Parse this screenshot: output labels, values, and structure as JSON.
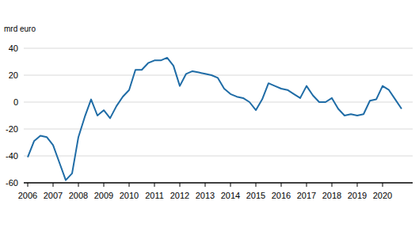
{
  "chart_data": {
    "type": "line",
    "y_label": "mrd euro",
    "x": [
      2006,
      2006.25,
      2006.5,
      2006.75,
      2007,
      2007.25,
      2007.5,
      2007.75,
      2008,
      2008.25,
      2008.5,
      2008.75,
      2009,
      2009.25,
      2009.5,
      2009.75,
      2010,
      2010.25,
      2010.5,
      2010.75,
      2011,
      2011.25,
      2011.5,
      2011.75,
      2012,
      2012.25,
      2012.5,
      2012.75,
      2013,
      2013.25,
      2013.5,
      2013.75,
      2014,
      2014.25,
      2014.5,
      2014.75,
      2015,
      2015.25,
      2015.5,
      2015.75,
      2016,
      2016.25,
      2016.5,
      2016.75,
      2017,
      2017.25,
      2017.5,
      2017.75,
      2018,
      2018.25,
      2018.5,
      2018.75,
      2019,
      2019.25,
      2019.5,
      2019.75,
      2020,
      2020.25,
      2020.5,
      2020.75
    ],
    "values": [
      -41,
      -29,
      -25,
      -26,
      -32,
      -45,
      -58,
      -53,
      -26,
      -11,
      2,
      -10,
      -6,
      -12,
      -3,
      4,
      9,
      24,
      24,
      29,
      31,
      31,
      33,
      27,
      12,
      21,
      23,
      22,
      21,
      20,
      18,
      10,
      6,
      4,
      3,
      0,
      -6,
      2,
      14,
      12,
      10,
      9,
      6,
      3,
      12,
      5,
      0,
      0,
      3,
      -5,
      -10,
      -9,
      -10,
      -9,
      1,
      2,
      12,
      9,
      2,
      -5
    ],
    "color": "#1f6ca6",
    "xlim": [
      2006,
      2020.75
    ],
    "xticks": [
      2006,
      2007,
      2008,
      2009,
      2010,
      2011,
      2012,
      2013,
      2014,
      2015,
      2016,
      2017,
      2018,
      2019,
      2020
    ],
    "ylim": [
      -60,
      40
    ],
    "yticks": [
      -60,
      -40,
      -20,
      0,
      20,
      40
    ],
    "grid": true
  }
}
